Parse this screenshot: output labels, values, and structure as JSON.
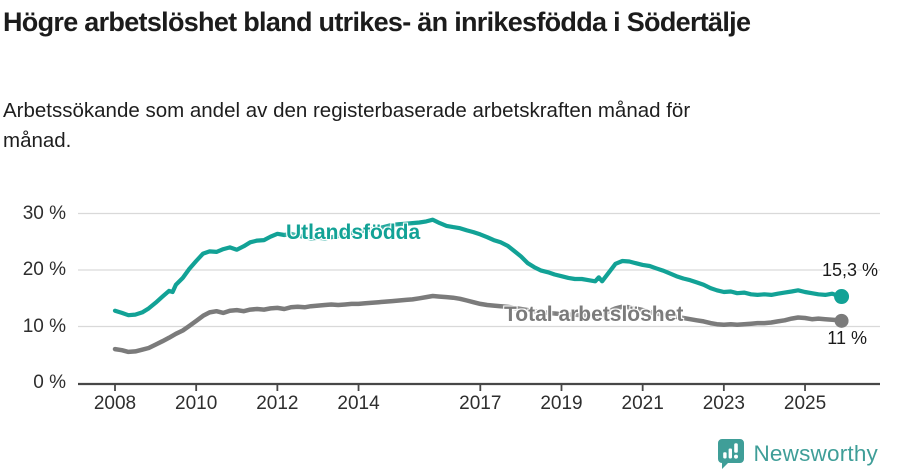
{
  "header": {
    "title": "Högre arbetslöshet bland utrikes- än inrikesfödda i Södertälje",
    "subtitle": "Arbetssökande som andel av den registerbaserade arbetskraften månad för månad."
  },
  "footer": {
    "brand": "Newsworthy"
  },
  "colors": {
    "teal": "#12a296",
    "gray": "#7b7b7b",
    "axis": "#474747",
    "grid": "#d9d9d9",
    "tick_text": "#2e2e2e",
    "end_label_text": "#1a1a1a",
    "brand": "#3f9e98",
    "title_text": "#1c1c1c"
  },
  "chart_data": {
    "type": "line",
    "title": "Högre arbetslöshet bland utrikes- än inrikesfödda i Södertälje",
    "subtitle": "Arbetssökande som andel av den registerbaserade arbetskraften månad för månad.",
    "xlabel": "",
    "ylabel": "",
    "ylim": [
      0,
      30
    ],
    "xlim": [
      2007.5,
      2026.1
    ],
    "grid": "horizontal",
    "legend_position": "inline-labels",
    "y_ticks": [
      {
        "label": "30 %",
        "value": 30
      },
      {
        "label": "20 %",
        "value": 20
      },
      {
        "label": "10 %",
        "value": 10
      },
      {
        "label": "0 %",
        "value": 0
      }
    ],
    "x_ticks": [
      {
        "label": "2008",
        "value": 2008
      },
      {
        "label": "2010",
        "value": 2010
      },
      {
        "label": "2012",
        "value": 2012
      },
      {
        "label": "2014",
        "value": 2014
      },
      {
        "label": "2017",
        "value": 2017
      },
      {
        "label": "2019",
        "value": 2019
      },
      {
        "label": "2021",
        "value": 2021
      },
      {
        "label": "2023",
        "value": 2023
      },
      {
        "label": "2025",
        "value": 2025
      }
    ],
    "series": [
      {
        "name": "Utlandsfödda",
        "color": "#12a296",
        "end_label": "15,3 %",
        "end_value": 15.3,
        "points": [
          [
            2008.0,
            12.8
          ],
          [
            2008.17,
            12.4
          ],
          [
            2008.33,
            12.0
          ],
          [
            2008.5,
            12.1
          ],
          [
            2008.67,
            12.5
          ],
          [
            2008.83,
            13.2
          ],
          [
            2009.0,
            14.2
          ],
          [
            2009.17,
            15.3
          ],
          [
            2009.33,
            16.3
          ],
          [
            2009.42,
            16.1
          ],
          [
            2009.5,
            17.4
          ],
          [
            2009.67,
            18.6
          ],
          [
            2009.83,
            20.2
          ],
          [
            2010.0,
            21.6
          ],
          [
            2010.17,
            22.9
          ],
          [
            2010.33,
            23.3
          ],
          [
            2010.5,
            23.2
          ],
          [
            2010.67,
            23.7
          ],
          [
            2010.83,
            24.0
          ],
          [
            2011.0,
            23.6
          ],
          [
            2011.17,
            24.2
          ],
          [
            2011.33,
            24.9
          ],
          [
            2011.5,
            25.2
          ],
          [
            2011.67,
            25.3
          ],
          [
            2011.83,
            25.9
          ],
          [
            2012.0,
            26.4
          ],
          [
            2012.17,
            26.2
          ],
          [
            2012.33,
            26.4
          ],
          [
            2012.5,
            26.1
          ],
          [
            2012.67,
            25.8
          ],
          [
            2012.83,
            25.6
          ],
          [
            2013.0,
            25.7
          ],
          [
            2013.17,
            25.6
          ],
          [
            2013.33,
            25.8
          ],
          [
            2013.5,
            26.0
          ],
          [
            2013.67,
            26.2
          ],
          [
            2013.83,
            26.5
          ],
          [
            2014.0,
            26.8
          ],
          [
            2014.17,
            27.0
          ],
          [
            2014.33,
            27.2
          ],
          [
            2014.5,
            27.4
          ],
          [
            2014.67,
            27.7
          ],
          [
            2014.83,
            28.0
          ],
          [
            2015.0,
            28.1
          ],
          [
            2015.17,
            28.2
          ],
          [
            2015.33,
            28.3
          ],
          [
            2015.5,
            28.4
          ],
          [
            2015.67,
            28.6
          ],
          [
            2015.83,
            28.9
          ],
          [
            2016.0,
            28.3
          ],
          [
            2016.17,
            27.8
          ],
          [
            2016.33,
            27.6
          ],
          [
            2016.5,
            27.4
          ],
          [
            2016.67,
            27.0
          ],
          [
            2016.83,
            26.7
          ],
          [
            2017.0,
            26.3
          ],
          [
            2017.17,
            25.8
          ],
          [
            2017.33,
            25.3
          ],
          [
            2017.5,
            24.9
          ],
          [
            2017.67,
            24.3
          ],
          [
            2017.83,
            23.4
          ],
          [
            2018.0,
            22.4
          ],
          [
            2018.17,
            21.2
          ],
          [
            2018.33,
            20.5
          ],
          [
            2018.5,
            19.9
          ],
          [
            2018.67,
            19.6
          ],
          [
            2018.83,
            19.2
          ],
          [
            2019.0,
            18.9
          ],
          [
            2019.17,
            18.6
          ],
          [
            2019.33,
            18.4
          ],
          [
            2019.5,
            18.4
          ],
          [
            2019.67,
            18.2
          ],
          [
            2019.83,
            18.0
          ],
          [
            2019.92,
            18.7
          ],
          [
            2020.0,
            18.0
          ],
          [
            2020.17,
            19.6
          ],
          [
            2020.33,
            21.1
          ],
          [
            2020.5,
            21.6
          ],
          [
            2020.67,
            21.5
          ],
          [
            2020.83,
            21.2
          ],
          [
            2021.0,
            20.9
          ],
          [
            2021.17,
            20.7
          ],
          [
            2021.33,
            20.3
          ],
          [
            2021.5,
            19.9
          ],
          [
            2021.67,
            19.4
          ],
          [
            2021.83,
            18.9
          ],
          [
            2022.0,
            18.5
          ],
          [
            2022.17,
            18.2
          ],
          [
            2022.33,
            17.8
          ],
          [
            2022.5,
            17.4
          ],
          [
            2022.67,
            16.8
          ],
          [
            2022.83,
            16.4
          ],
          [
            2023.0,
            16.1
          ],
          [
            2023.17,
            16.2
          ],
          [
            2023.33,
            15.9
          ],
          [
            2023.5,
            16.0
          ],
          [
            2023.67,
            15.7
          ],
          [
            2023.83,
            15.6
          ],
          [
            2024.0,
            15.7
          ],
          [
            2024.17,
            15.6
          ],
          [
            2024.33,
            15.8
          ],
          [
            2024.5,
            16.0
          ],
          [
            2024.67,
            16.2
          ],
          [
            2024.83,
            16.4
          ],
          [
            2025.0,
            16.1
          ],
          [
            2025.17,
            15.9
          ],
          [
            2025.33,
            15.7
          ],
          [
            2025.5,
            15.6
          ],
          [
            2025.67,
            15.8
          ],
          [
            2025.83,
            15.4
          ],
          [
            2025.9,
            15.3
          ]
        ]
      },
      {
        "name": "Total arbetslöshet",
        "color": "#7b7b7b",
        "end_label": "11 %",
        "end_value": 11,
        "points": [
          [
            2008.0,
            6.0
          ],
          [
            2008.17,
            5.8
          ],
          [
            2008.33,
            5.5
          ],
          [
            2008.5,
            5.6
          ],
          [
            2008.67,
            5.9
          ],
          [
            2008.83,
            6.2
          ],
          [
            2009.0,
            6.8
          ],
          [
            2009.17,
            7.4
          ],
          [
            2009.33,
            8.0
          ],
          [
            2009.5,
            8.7
          ],
          [
            2009.67,
            9.3
          ],
          [
            2009.83,
            10.1
          ],
          [
            2010.0,
            11.0
          ],
          [
            2010.17,
            11.9
          ],
          [
            2010.33,
            12.5
          ],
          [
            2010.5,
            12.7
          ],
          [
            2010.67,
            12.4
          ],
          [
            2010.83,
            12.8
          ],
          [
            2011.0,
            12.9
          ],
          [
            2011.17,
            12.7
          ],
          [
            2011.33,
            13.0
          ],
          [
            2011.5,
            13.1
          ],
          [
            2011.67,
            13.0
          ],
          [
            2011.83,
            13.2
          ],
          [
            2012.0,
            13.3
          ],
          [
            2012.17,
            13.1
          ],
          [
            2012.33,
            13.4
          ],
          [
            2012.5,
            13.5
          ],
          [
            2012.67,
            13.4
          ],
          [
            2012.83,
            13.6
          ],
          [
            2013.0,
            13.7
          ],
          [
            2013.17,
            13.8
          ],
          [
            2013.33,
            13.9
          ],
          [
            2013.5,
            13.8
          ],
          [
            2013.67,
            13.9
          ],
          [
            2013.83,
            14.0
          ],
          [
            2014.0,
            14.0
          ],
          [
            2014.17,
            14.1
          ],
          [
            2014.33,
            14.2
          ],
          [
            2014.5,
            14.3
          ],
          [
            2014.67,
            14.4
          ],
          [
            2014.83,
            14.5
          ],
          [
            2015.0,
            14.6
          ],
          [
            2015.17,
            14.7
          ],
          [
            2015.33,
            14.8
          ],
          [
            2015.5,
            15.0
          ],
          [
            2015.67,
            15.2
          ],
          [
            2015.83,
            15.4
          ],
          [
            2016.0,
            15.3
          ],
          [
            2016.17,
            15.2
          ],
          [
            2016.33,
            15.1
          ],
          [
            2016.5,
            14.9
          ],
          [
            2016.67,
            14.6
          ],
          [
            2016.83,
            14.3
          ],
          [
            2017.0,
            14.0
          ],
          [
            2017.17,
            13.8
          ],
          [
            2017.33,
            13.7
          ],
          [
            2017.5,
            13.6
          ],
          [
            2017.67,
            13.5
          ],
          [
            2017.83,
            13.3
          ],
          [
            2018.0,
            13.1
          ],
          [
            2018.17,
            12.9
          ],
          [
            2018.33,
            12.7
          ],
          [
            2018.5,
            12.6
          ],
          [
            2018.67,
            12.4
          ],
          [
            2018.83,
            12.3
          ],
          [
            2019.0,
            12.2
          ],
          [
            2019.17,
            12.1
          ],
          [
            2019.33,
            12.1
          ],
          [
            2019.5,
            12.0
          ],
          [
            2019.67,
            11.9
          ],
          [
            2019.83,
            11.9
          ],
          [
            2020.0,
            12.0
          ],
          [
            2020.17,
            12.7
          ],
          [
            2020.33,
            13.2
          ],
          [
            2020.5,
            13.5
          ],
          [
            2020.67,
            13.4
          ],
          [
            2020.83,
            13.2
          ],
          [
            2021.0,
            12.9
          ],
          [
            2021.17,
            12.6
          ],
          [
            2021.33,
            12.3
          ],
          [
            2021.5,
            12.1
          ],
          [
            2021.67,
            11.9
          ],
          [
            2021.83,
            11.7
          ],
          [
            2022.0,
            11.5
          ],
          [
            2022.17,
            11.3
          ],
          [
            2022.33,
            11.1
          ],
          [
            2022.5,
            10.9
          ],
          [
            2022.67,
            10.6
          ],
          [
            2022.83,
            10.4
          ],
          [
            2023.0,
            10.3
          ],
          [
            2023.17,
            10.4
          ],
          [
            2023.33,
            10.3
          ],
          [
            2023.5,
            10.4
          ],
          [
            2023.67,
            10.5
          ],
          [
            2023.83,
            10.6
          ],
          [
            2024.0,
            10.6
          ],
          [
            2024.17,
            10.7
          ],
          [
            2024.33,
            10.9
          ],
          [
            2024.5,
            11.1
          ],
          [
            2024.67,
            11.4
          ],
          [
            2024.83,
            11.6
          ],
          [
            2025.0,
            11.5
          ],
          [
            2025.17,
            11.3
          ],
          [
            2025.33,
            11.4
          ],
          [
            2025.5,
            11.3
          ],
          [
            2025.67,
            11.2
          ],
          [
            2025.83,
            11.1
          ],
          [
            2025.9,
            11.0
          ]
        ]
      }
    ]
  }
}
